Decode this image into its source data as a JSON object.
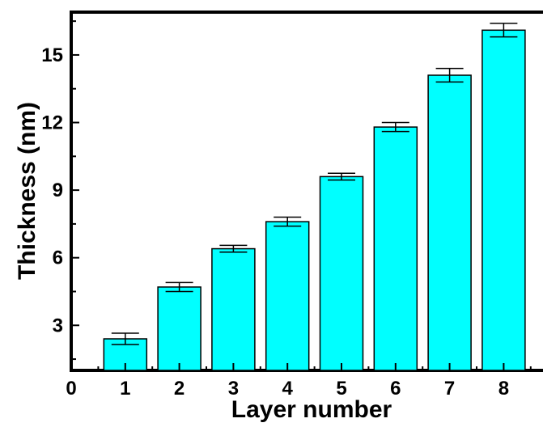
{
  "chart_data": {
    "type": "bar",
    "title": "",
    "xlabel": "Layer number",
    "ylabel": "Thickness (nm)",
    "categories": [
      "1",
      "2",
      "3",
      "4",
      "5",
      "6",
      "7",
      "8"
    ],
    "values": [
      2.4,
      4.7,
      6.4,
      7.6,
      9.6,
      11.8,
      14.1,
      16.1
    ],
    "errors": [
      0.25,
      0.2,
      0.15,
      0.2,
      0.15,
      0.2,
      0.3,
      0.3
    ],
    "xlim": [
      0,
      8.5
    ],
    "ylim": [
      1,
      16.9
    ],
    "xticks": [
      "0",
      "1",
      "2",
      "3",
      "4",
      "5",
      "6",
      "7",
      "8"
    ],
    "yticks": [
      3,
      6,
      9,
      12,
      15
    ],
    "grid": false,
    "legend": "none",
    "bar_color": "#00FFFF",
    "outline_color": "#000000"
  }
}
